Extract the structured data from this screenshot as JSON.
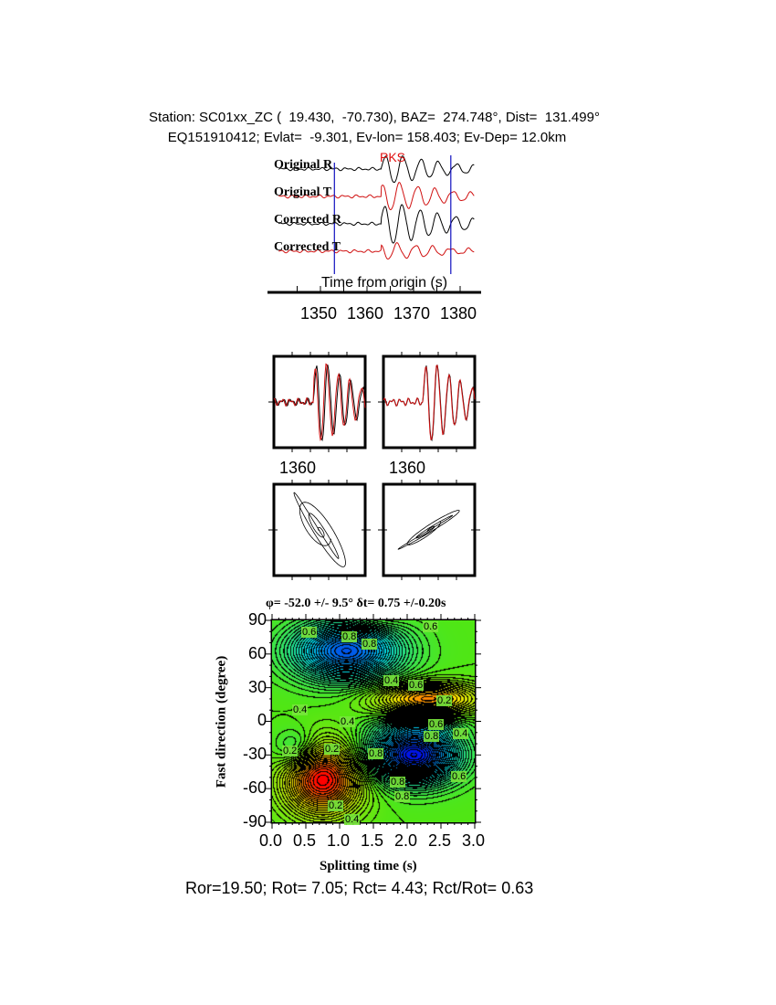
{
  "header": {
    "line1": "Station: SC01xx_ZC (  19.430,  -70.730), BAZ=  274.748°, Dist=  131.499°",
    "line2": "EQ151910412; Evlat=  -9.301, Ev-lon= 158.403; Ev-Dep= 12.0km"
  },
  "colors": {
    "radial": "#000000",
    "transverse": "#d01010",
    "window": "#1010c0",
    "phase": "#e01010"
  },
  "chart_data": [
    {
      "type": "line",
      "series": [
        {
          "name": "Original R"
        },
        {
          "name": "Original T"
        },
        {
          "name": "Corrected R"
        },
        {
          "name": "Corrected T"
        }
      ],
      "phase_label": "PKS",
      "xlabel": "Time from origin (s)",
      "xticks": [
        "1350",
        "1360",
        "1370",
        "1380"
      ],
      "xlim": [
        1340,
        1384
      ],
      "window": [
        1353,
        1378
      ]
    },
    {
      "type": "line",
      "panels": [
        "original R/T overlay",
        "corrected R/T overlay"
      ],
      "xticks": [
        "1360",
        "1360"
      ]
    },
    {
      "type": "scatter",
      "panels": [
        "original particle motion",
        "corrected particle motion"
      ]
    },
    {
      "type": "heatmap",
      "title": "φ= -52.0 +/- 9.5° δt= 0.75 +/-0.20s",
      "xlabel": "Splitting time (s)",
      "ylabel": "Fast direction (degree)",
      "xlim": [
        0,
        3.0
      ],
      "ylim": [
        -90,
        90
      ],
      "xticks": [
        "0.0",
        "0.5",
        "1.0",
        "1.5",
        "2.0",
        "2.5",
        "3.0"
      ],
      "yticks": [
        "90",
        "60",
        "30",
        "0",
        "-30",
        "-60",
        "-90"
      ],
      "best_fit": {
        "dt": 0.75,
        "phi": -52.0
      },
      "contour_labels": [
        "0.6",
        "0.8",
        "0.8",
        "0.6",
        "0.6",
        "0.4",
        "0.2",
        "0.4",
        "0.4",
        "0.4",
        "0.6",
        "0.8",
        "0.2",
        "0.2",
        "0.8",
        "0.8",
        "0.6",
        "0.8",
        "0.2",
        "0.4"
      ]
    }
  ],
  "footer": "Ror=19.50; Rot= 7.05; Rct= 4.43; Rct/Rot= 0.63"
}
